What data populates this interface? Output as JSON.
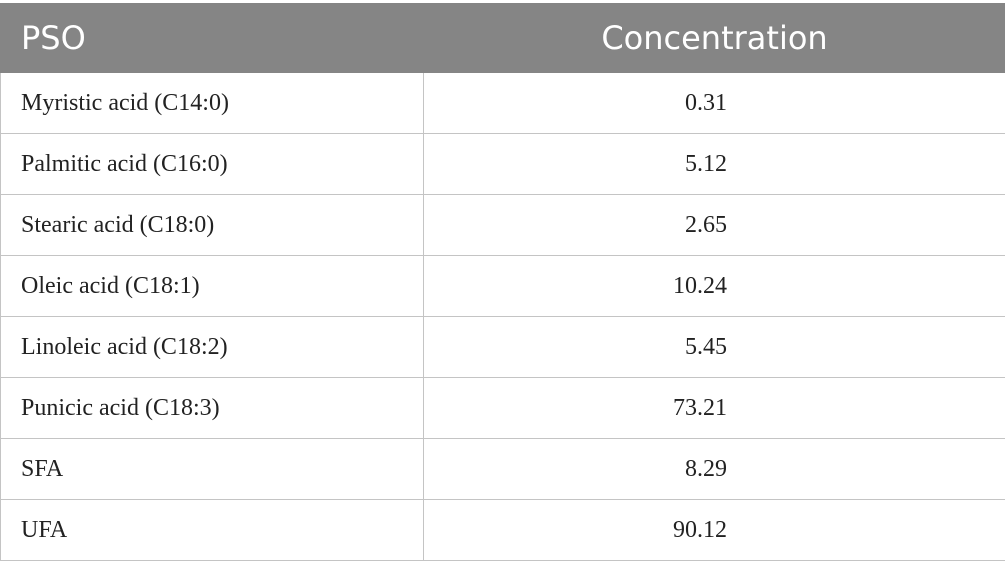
{
  "table": {
    "header": [
      "PSO",
      "Concentration"
    ],
    "rows": [
      [
        "Myristic acid (C14:0)",
        "0.31"
      ],
      [
        "Palmitic acid (C16:0)",
        "5.12"
      ],
      [
        "Stearic acid (C18:0)",
        "2.65"
      ],
      [
        "Oleic acid (C18:1)",
        "10.24"
      ],
      [
        "Linoleic acid (C18:2)",
        "5.45"
      ],
      [
        "Punicic acid (C18:3)",
        "73.21"
      ],
      [
        "SFA",
        "8.29"
      ],
      [
        "UFA",
        "90.12"
      ]
    ]
  }
}
